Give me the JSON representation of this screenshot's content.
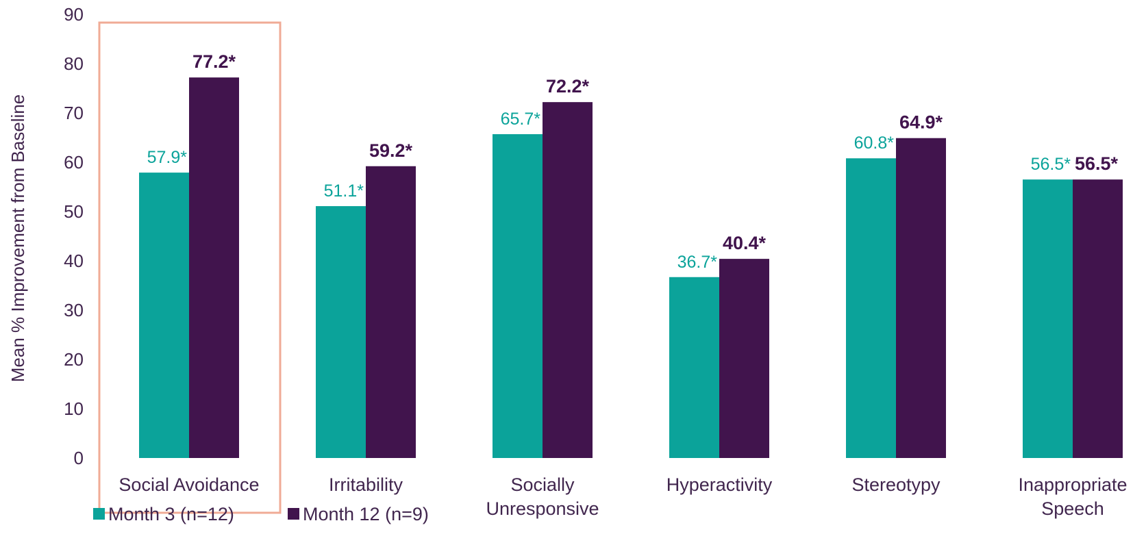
{
  "chart_data": {
    "type": "bar",
    "ylabel": "Mean % Improvement from Baseline",
    "ylim": [
      0,
      90
    ],
    "yticks": [
      0,
      10,
      20,
      30,
      40,
      50,
      60,
      70,
      80,
      90
    ],
    "categories": [
      [
        "Social Avoidance"
      ],
      [
        "Irritability"
      ],
      [
        "Socially",
        "Unresponsive"
      ],
      [
        "Hyperactivity"
      ],
      [
        "Stereotypy"
      ],
      [
        "Inappropriate",
        "Speech"
      ]
    ],
    "series": [
      {
        "name": "Month 3 (n=12)",
        "color": "#0ba39a",
        "values": [
          57.9,
          51.1,
          65.7,
          36.7,
          60.8,
          56.5
        ],
        "labels": [
          "57.9*",
          "51.1*",
          "65.7*",
          "36.7*",
          "60.8*",
          "56.5*"
        ]
      },
      {
        "name": "Month 12 (n=9)",
        "color": "#41144d",
        "values": [
          77.2,
          59.2,
          72.2,
          40.4,
          64.9,
          56.5
        ],
        "labels": [
          "77.2*",
          "59.2*",
          "72.2*",
          "40.4*",
          "64.9*",
          "56.5*"
        ]
      }
    ],
    "highlight_category": "Social Avoidance",
    "highlight_color": "#f0ab96",
    "grid": false,
    "legend_position": "bottom-left"
  }
}
